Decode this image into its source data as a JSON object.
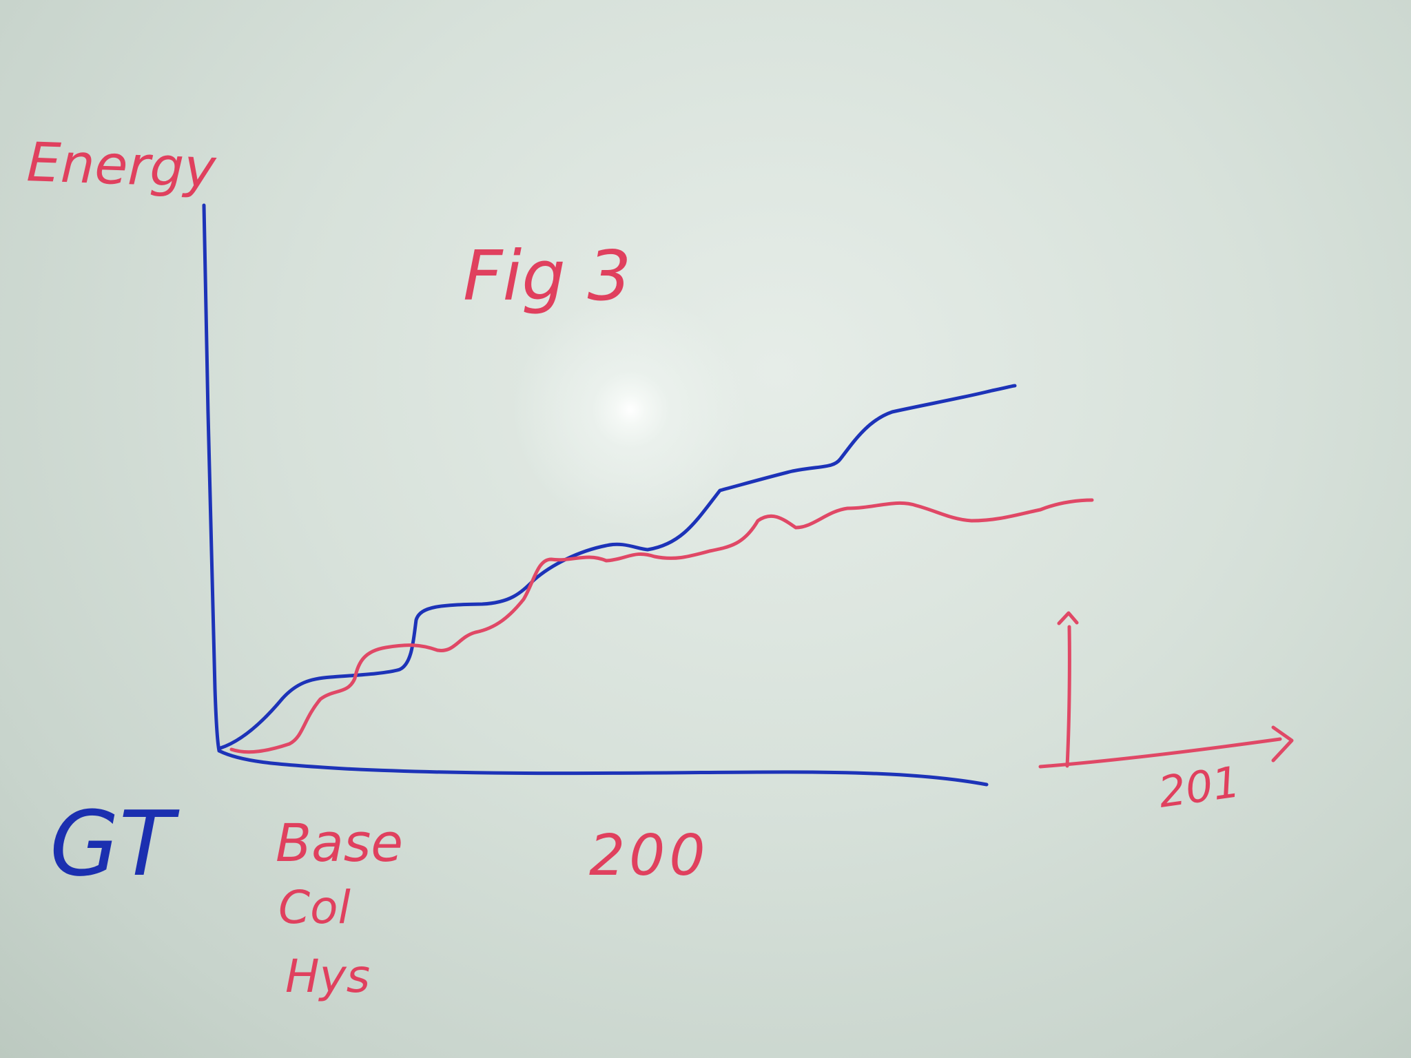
{
  "board": {
    "y_axis_label": "Energy",
    "figure_label": "Fig 3",
    "blue_legend": "GT",
    "red_legend_items": [
      "Base",
      "Col",
      "Hys"
    ],
    "tick_label_center": "200",
    "tick_label_right": "201",
    "colors": {
      "blue_ink": "#1d33b8",
      "red_ink": "#e04866",
      "board": "#d7e1da"
    }
  }
}
